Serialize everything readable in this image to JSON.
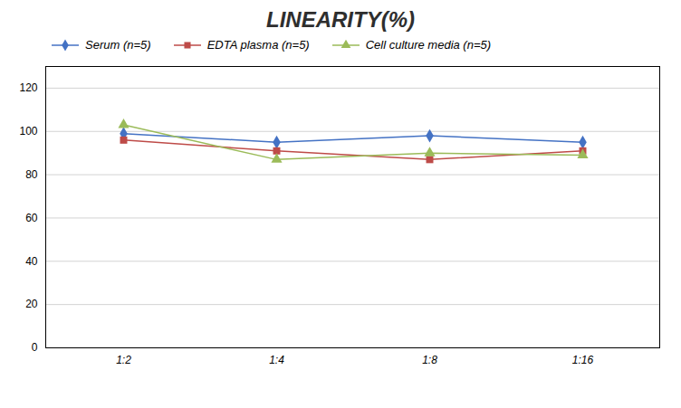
{
  "chart_data": {
    "type": "line",
    "title": "LINEARITY(%)",
    "categories": [
      "1:2",
      "1:4",
      "1:8",
      "1:16"
    ],
    "series": [
      {
        "name": "Serum (n=5)",
        "color": "#4472C4",
        "marker": "diamond",
        "values": [
          99,
          95,
          98,
          95
        ]
      },
      {
        "name": "EDTA plasma (n=5)",
        "color": "#BE4B48",
        "marker": "square",
        "values": [
          96,
          91,
          87,
          91
        ]
      },
      {
        "name": "Cell culture media (n=5)",
        "color": "#9BBB59",
        "marker": "triangle",
        "values": [
          103,
          87,
          90,
          89
        ]
      }
    ],
    "ylim": [
      0,
      130
    ],
    "yticks": [
      0,
      20,
      40,
      60,
      80,
      100,
      120
    ],
    "grid": true,
    "legend": "top"
  }
}
